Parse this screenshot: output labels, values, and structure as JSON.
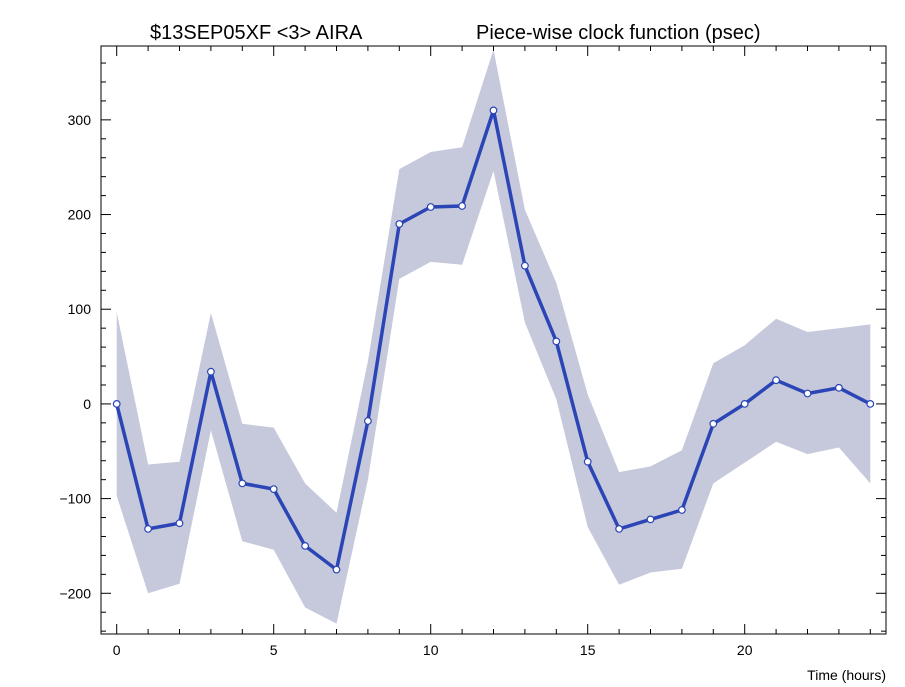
{
  "chart_data": {
    "type": "line",
    "title_left": "$13SEP05XF <3>  AIRA",
    "title_right": "Piece-wise clock function (psec)",
    "xlabel": "Time (hours)",
    "ylabel": "",
    "xlim": [
      -0.5,
      24.5
    ],
    "ylim": [
      -243,
      378
    ],
    "xticks": [
      0,
      5,
      10,
      15,
      20
    ],
    "yticks": [
      -200,
      -100,
      0,
      100,
      200,
      300
    ],
    "grid": false,
    "series": [
      {
        "x": [
          0,
          1,
          2,
          3,
          4,
          5,
          6,
          7,
          8,
          9,
          10,
          11,
          12,
          13,
          14,
          15,
          16,
          17,
          18,
          19,
          20,
          21,
          22,
          23,
          24
        ],
        "values": [
          0,
          -132,
          -126,
          34,
          -84,
          -90,
          -150,
          -175,
          -18,
          190,
          208,
          209,
          310,
          146,
          66,
          -61,
          -132,
          -122,
          -112,
          -21,
          0,
          25,
          11,
          17,
          0
        ],
        "upper": [
          97,
          -64,
          -61,
          96,
          -21,
          -25,
          -84,
          -115,
          45,
          248,
          266,
          271,
          374,
          205,
          128,
          10,
          -72,
          -66,
          -49,
          43,
          62,
          90,
          76,
          80,
          84
        ],
        "lower": [
          -97,
          -200,
          -190,
          -28,
          -145,
          -154,
          -215,
          -232,
          -80,
          132,
          150,
          147,
          246,
          86,
          5,
          -130,
          -191,
          -178,
          -174,
          -84,
          -62,
          -40,
          -53,
          -46,
          -84
        ],
        "color": "#2b45b6",
        "band_color": "#c5c9db"
      }
    ]
  }
}
